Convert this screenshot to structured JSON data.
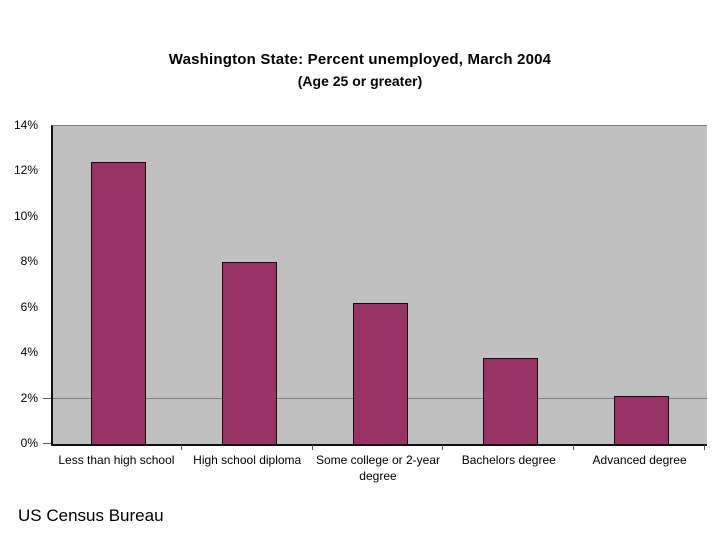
{
  "slide": {
    "title": "Washington State: Percent unemployed, March 2004",
    "subtitle": "(Age 25 or greater)",
    "credit": "US Census Bureau"
  },
  "chart_data": {
    "type": "bar",
    "title": "Washington State: Percent unemployed, March 2004",
    "subtitle": "(Age 25 or greater)",
    "categories": [
      "Less than high school",
      "High school diploma",
      "Some college or 2-year degree",
      "Bachelors degree",
      "Advanced degree"
    ],
    "values": [
      12.4,
      8.0,
      6.2,
      3.8,
      2.1
    ],
    "xlabel": "",
    "ylabel": "",
    "ylim": [
      0,
      14
    ],
    "y_ticks": [
      0,
      2,
      4,
      6,
      8,
      10,
      12,
      14
    ],
    "y_tick_labels": [
      "0%",
      "2%",
      "4%",
      "6%",
      "8%",
      "10%",
      "12%",
      "14%"
    ],
    "gridlines_at": [
      2
    ],
    "y_axis_tick_marks": [
      0,
      2
    ],
    "legend": "none",
    "colors": {
      "bar_fill": "#993366",
      "bar_border": "#140a10",
      "plot_background": "#c0c0c0",
      "gridline": "#808080",
      "axis": "#111111",
      "text": "#000000",
      "page_background": "#ffffff"
    }
  }
}
